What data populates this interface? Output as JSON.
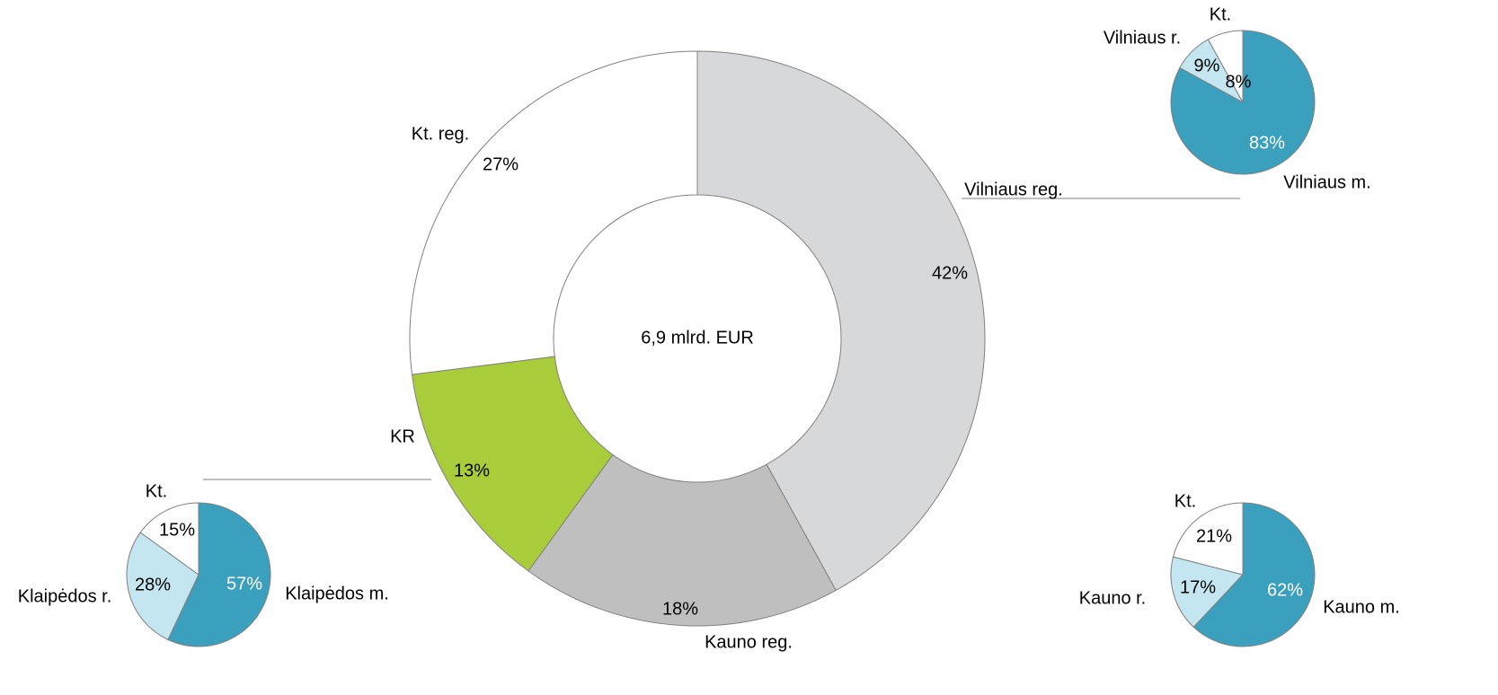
{
  "chart_data": [
    {
      "type": "donut",
      "center_label": "6,9 mlrd. EUR",
      "categories": [
        "Vilniaus reg.",
        "Kauno reg.",
        "KR",
        "Kt. reg."
      ],
      "values": [
        42,
        18,
        13,
        27
      ],
      "value_labels": [
        "42%",
        "18%",
        "13%",
        "27%"
      ],
      "colors": [
        "#d7d8da",
        "#bfbfbf",
        "#a9cc3a",
        "#ffffff"
      ]
    },
    {
      "type": "pie",
      "categories": [
        "Vilniaus m.",
        "Vilniaus r.",
        "Kt."
      ],
      "values": [
        83,
        9,
        8
      ],
      "value_labels": [
        "83%",
        "9%",
        "8%"
      ],
      "colors": [
        "#3aa0be",
        "#c3e6f0",
        "#ffffff"
      ]
    },
    {
      "type": "pie",
      "categories": [
        "Klaipėdos m.",
        "Klaipėdos r.",
        "Kt."
      ],
      "values": [
        57,
        28,
        15
      ],
      "value_labels": [
        "57%",
        "28%",
        "15%"
      ],
      "colors": [
        "#3aa0be",
        "#c3e6f0",
        "#ffffff"
      ]
    },
    {
      "type": "pie",
      "categories": [
        "Kauno m.",
        "Kauno r.",
        "Kt."
      ],
      "values": [
        62,
        17,
        21
      ],
      "value_labels": [
        "62%",
        "17%",
        "21%"
      ],
      "colors": [
        "#3aa0be",
        "#c3e6f0",
        "#ffffff"
      ]
    }
  ]
}
